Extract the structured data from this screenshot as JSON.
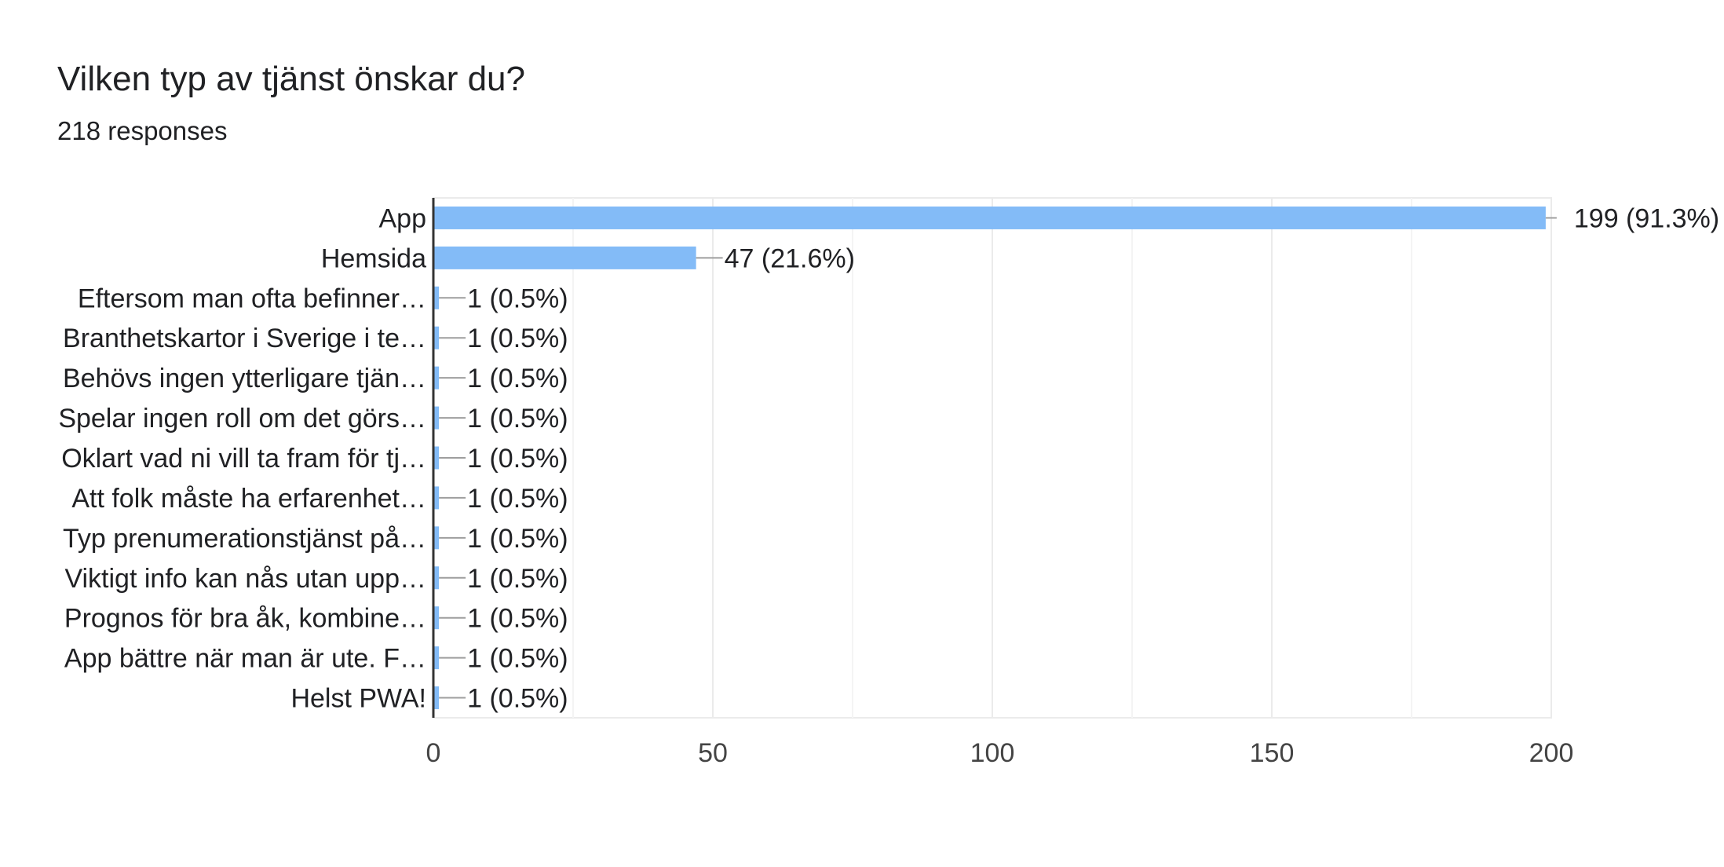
{
  "form": {
    "question": "Vilken typ av tjänst önskar du?",
    "responses": "218 responses"
  },
  "chart_data": {
    "type": "bar",
    "orientation": "horizontal",
    "categories": [
      "App",
      "Hemsida",
      "Eftersom man ofta befinner…",
      "Branthetskartor i Sverige i te…",
      "Behövs ingen ytterligare tjän…",
      "Spelar ingen roll om det görs…",
      "Oklart vad ni vill ta fram för tj…",
      "Att folk måste ha erfarenhet…",
      "Typ prenumerationstjänst på…",
      "Viktigt info kan nås utan upp…",
      "Prognos för bra åk, kombine…",
      "App bättre när man är ute. F…",
      "Helst PWA!"
    ],
    "values": [
      199,
      47,
      1,
      1,
      1,
      1,
      1,
      1,
      1,
      1,
      1,
      1,
      1
    ],
    "data_labels": [
      "199 (91.3%)",
      "47 (21.6%)",
      "1 (0.5%)",
      "1 (0.5%)",
      "1 (0.5%)",
      "1 (0.5%)",
      "1 (0.5%)",
      "1 (0.5%)",
      "1 (0.5%)",
      "1 (0.5%)",
      "1 (0.5%)",
      "1 (0.5%)",
      "1 (0.5%)"
    ],
    "xlim": [
      0,
      200
    ],
    "x_ticks": [
      "0",
      "50",
      "100",
      "150",
      "200"
    ],
    "x_tick_values": [
      0,
      50,
      100,
      150,
      200
    ],
    "minor_grid_values": [
      25,
      75,
      125,
      175
    ],
    "grid": true,
    "legend": "none",
    "bar_color": "#83bbf7",
    "axis_color": "#333333",
    "grid_color": "#ebebeb",
    "text_color": "#202124"
  }
}
